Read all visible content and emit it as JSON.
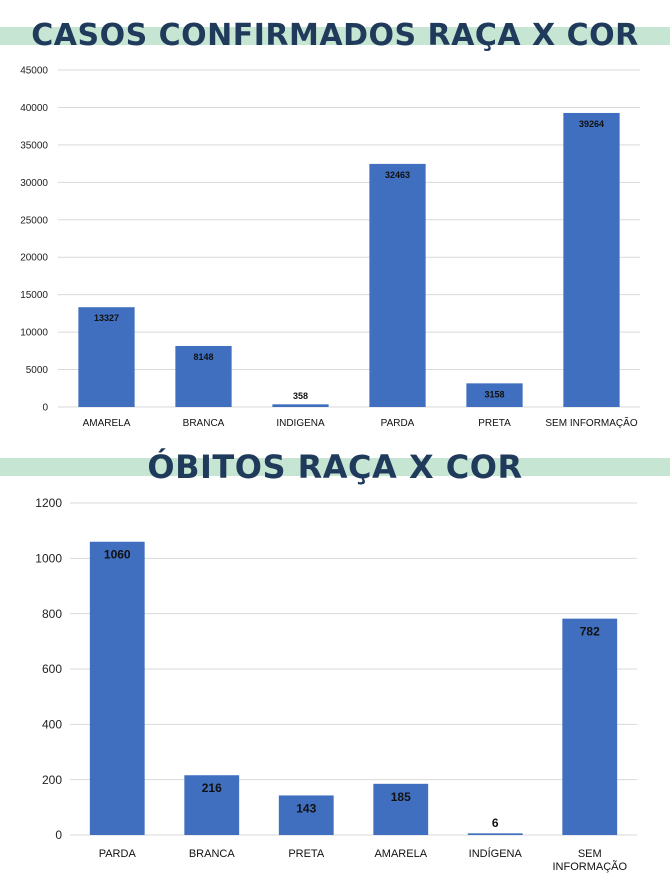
{
  "chart_data": [
    {
      "type": "bar",
      "title": "CASOS CONFIRMADOS  RAÇA X COR",
      "categories": [
        "AMARELA",
        "BRANCA",
        "INDIGENA",
        "PARDA",
        "PRETA",
        "SEM INFORMAÇÃO"
      ],
      "values": [
        13327,
        8148,
        358,
        32463,
        3158,
        39264
      ],
      "ylim": [
        0,
        45000
      ],
      "yticks": [
        0,
        5000,
        10000,
        15000,
        20000,
        25000,
        30000,
        35000,
        40000,
        45000
      ],
      "grid": true,
      "bar_color": "#3f6fbe"
    },
    {
      "type": "bar",
      "title": "ÓBITOS RAÇA X COR",
      "categories": [
        "PARDA",
        "BRANCA",
        "PRETA",
        "AMARELA",
        "INDÍGENA",
        "SEM INFORMAÇÃO"
      ],
      "values": [
        1060,
        216,
        143,
        185,
        6,
        782
      ],
      "ylim": [
        0,
        1200
      ],
      "yticks": [
        0,
        200,
        400,
        600,
        800,
        1000,
        1200
      ],
      "grid": true,
      "bar_color": "#3f6fbe"
    }
  ],
  "colors": {
    "title": "#1f3a5a",
    "band": "#c6e5d3",
    "bar": "#3f6fbe",
    "grid": "#d9d9d9"
  }
}
